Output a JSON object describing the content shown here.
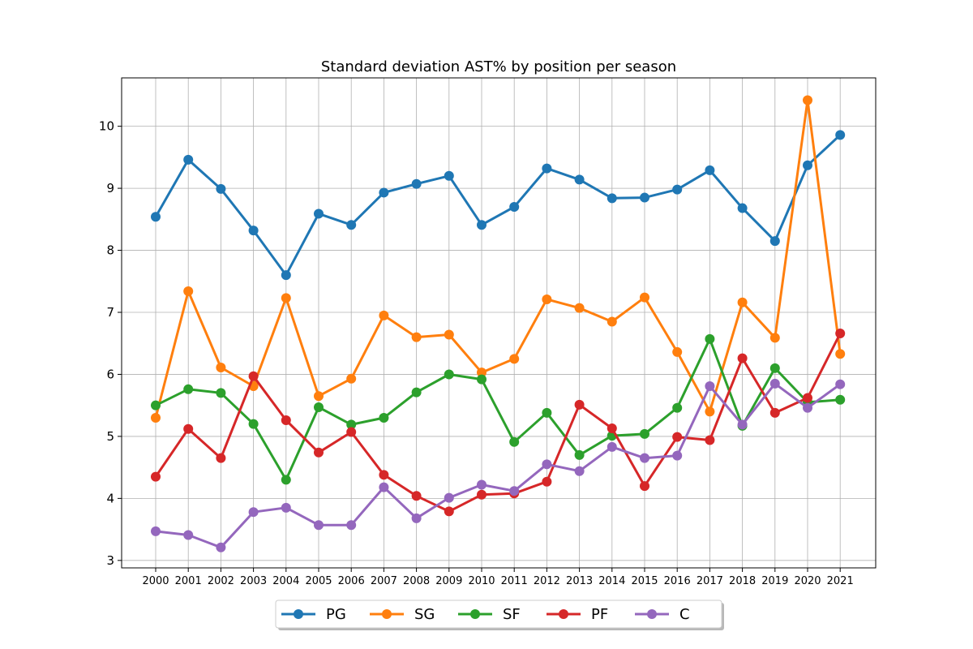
{
  "chart_data": {
    "type": "line",
    "title": "Standard deviation AST% by position per season",
    "xlabel": "",
    "ylabel": "",
    "ylim": [
      2.88,
      10.78
    ],
    "yticks": [
      3,
      4,
      5,
      6,
      7,
      8,
      9,
      10
    ],
    "grid": true,
    "legend_position": "bottom-center",
    "categories": [
      "2000",
      "2001",
      "2002",
      "2003",
      "2004",
      "2005",
      "2006",
      "2007",
      "2008",
      "2009",
      "2010",
      "2011",
      "2012",
      "2013",
      "2014",
      "2015",
      "2016",
      "2017",
      "2018",
      "2019",
      "2020",
      "2021"
    ],
    "series": [
      {
        "name": "PG",
        "color": "#1f77b4",
        "values": [
          8.54,
          9.46,
          8.99,
          8.32,
          7.6,
          8.59,
          8.41,
          8.93,
          9.07,
          9.2,
          8.41,
          8.7,
          9.32,
          9.14,
          8.84,
          8.85,
          8.98,
          9.29,
          8.68,
          8.15,
          9.37,
          9.86
        ]
      },
      {
        "name": "SG",
        "color": "#ff7f0e",
        "values": [
          5.3,
          7.34,
          6.11,
          5.81,
          7.23,
          5.65,
          5.93,
          6.95,
          6.6,
          6.64,
          6.03,
          6.25,
          7.21,
          7.07,
          6.85,
          7.24,
          6.36,
          5.4,
          7.16,
          6.59,
          10.42,
          6.33
        ]
      },
      {
        "name": "SF",
        "color": "#2ca02c",
        "values": [
          5.5,
          5.76,
          5.7,
          5.2,
          4.3,
          5.47,
          5.19,
          5.3,
          5.71,
          6.0,
          5.92,
          4.91,
          5.38,
          4.7,
          5.01,
          5.04,
          5.46,
          6.57,
          5.17,
          6.1,
          5.55,
          5.59
        ]
      },
      {
        "name": "PF",
        "color": "#d62728",
        "values": [
          4.35,
          5.12,
          4.65,
          5.97,
          5.26,
          4.74,
          5.07,
          4.38,
          4.04,
          3.79,
          4.06,
          4.08,
          4.27,
          5.51,
          5.13,
          4.2,
          4.99,
          4.94,
          6.26,
          5.38,
          5.62,
          6.66
        ]
      },
      {
        "name": "C",
        "color": "#9467bd",
        "values": [
          3.47,
          3.41,
          3.21,
          3.78,
          3.85,
          3.57,
          3.57,
          4.18,
          3.68,
          4.01,
          4.22,
          4.12,
          4.55,
          4.44,
          4.83,
          4.65,
          4.69,
          5.81,
          5.19,
          5.85,
          5.46,
          5.84
        ]
      }
    ]
  }
}
